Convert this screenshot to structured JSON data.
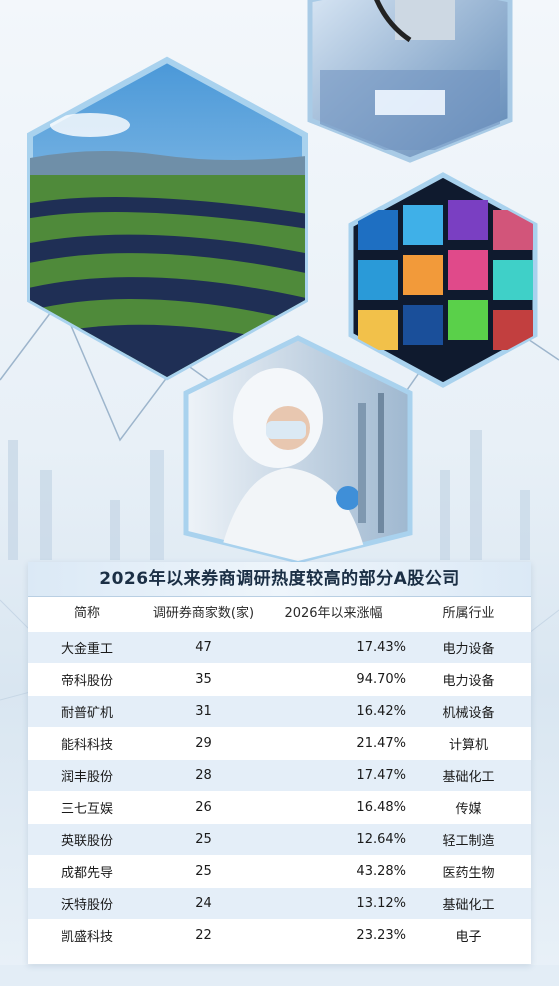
{
  "images": [
    {
      "name": "solar-farm-photo"
    },
    {
      "name": "chip-machine-photo"
    },
    {
      "name": "media-screens-photo"
    },
    {
      "name": "lab-worker-photo"
    }
  ],
  "table": {
    "title": "2026年以来券商调研热度较高的部分A股公司",
    "headers": [
      "简称",
      "调研券商家数(家)",
      "2026年以来涨幅",
      "所属行业"
    ],
    "rows": [
      {
        "name": "大金重工",
        "count": "47",
        "change": "17.43%",
        "industry": "电力设备"
      },
      {
        "name": "帝科股份",
        "count": "35",
        "change": "94.70%",
        "industry": "电力设备"
      },
      {
        "name": "耐普矿机",
        "count": "31",
        "change": "16.42%",
        "industry": "机械设备"
      },
      {
        "name": "能科科技",
        "count": "29",
        "change": "21.47%",
        "industry": "计算机"
      },
      {
        "name": "润丰股份",
        "count": "28",
        "change": "17.47%",
        "industry": "基础化工"
      },
      {
        "name": "三七互娱",
        "count": "26",
        "change": "16.48%",
        "industry": "传媒"
      },
      {
        "name": "英联股份",
        "count": "25",
        "change": "12.64%",
        "industry": "轻工制造"
      },
      {
        "name": "成都先导",
        "count": "25",
        "change": "43.28%",
        "industry": "医药生物"
      },
      {
        "name": "沃特股份",
        "count": "24",
        "change": "13.12%",
        "industry": "基础化工"
      },
      {
        "name": "凯盛科技",
        "count": "22",
        "change": "23.23%",
        "industry": "电子"
      }
    ]
  }
}
